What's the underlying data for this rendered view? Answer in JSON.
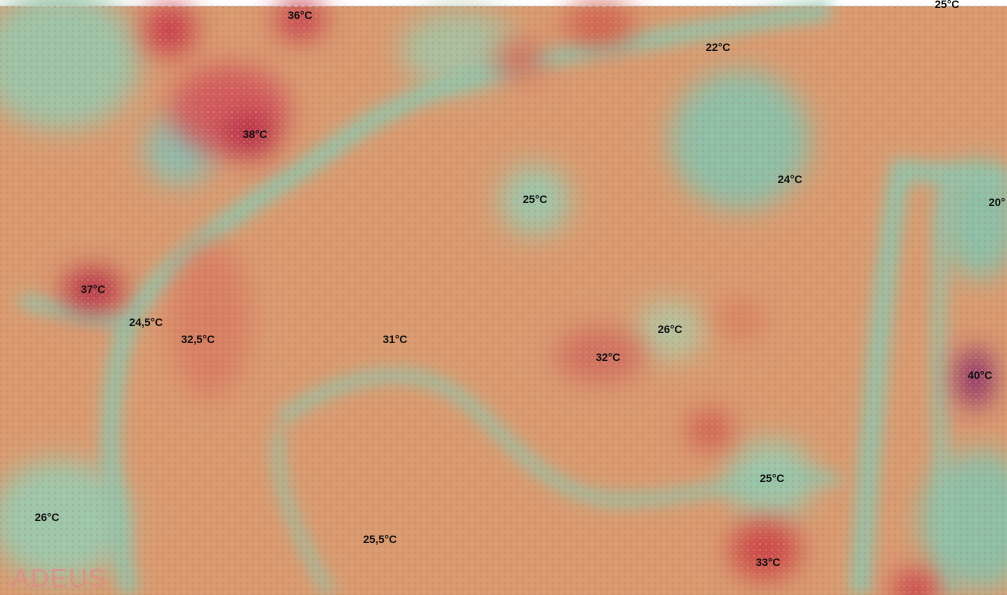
{
  "map": {
    "labels": [
      "36°C",
      "25°C",
      "22°C",
      "38°C",
      "24°C",
      "25°C",
      "20°",
      "37°C",
      "24,5°C",
      "32,5°C",
      "31°C",
      "26°C",
      "32°C",
      "40°C",
      "25°C",
      "26°C",
      "25,5°C",
      "33°C"
    ],
    "logo": "ADEUS"
  }
}
